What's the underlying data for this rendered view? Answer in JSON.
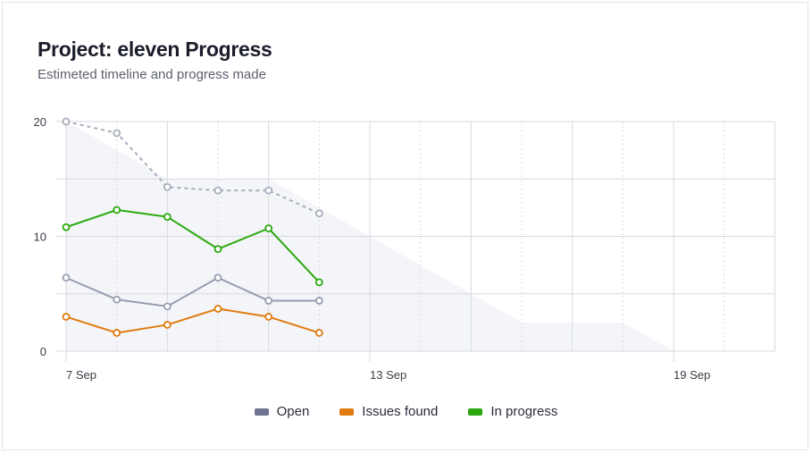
{
  "header": {
    "title": "Project: eleven Progress",
    "subtitle": "Estimeted timeline and progress made"
  },
  "chart_data": {
    "type": "line",
    "x_axis": {
      "range": [
        "7 Sep",
        "21 Sep"
      ],
      "tick_labels": [
        "7 Sep",
        "13 Sep",
        "19 Sep"
      ]
    },
    "y_axis": {
      "range": [
        0,
        20
      ],
      "tick_labels": [
        "0",
        "10",
        "20"
      ]
    },
    "grid": true,
    "legend_placement": "bottom",
    "x": [
      "7 Sep",
      "8 Sep",
      "9 Sep",
      "10 Sep",
      "11 Sep",
      "12 Sep"
    ],
    "series": [
      {
        "name": "Open",
        "color": "#9a9cb0",
        "swatch": "#6f7390",
        "values": [
          6.4,
          4.5,
          3.9,
          6.4,
          4.4,
          4.4
        ]
      },
      {
        "name": "Issues found",
        "color": "#e07b10",
        "swatch": "#e07b10",
        "values": [
          3,
          1.6,
          2.3,
          3.7,
          3,
          1.6
        ]
      },
      {
        "name": "In progress",
        "color": "#2ba80e",
        "swatch": "#2ba80e",
        "values": [
          10.8,
          12.3,
          11.7,
          8.9,
          10.7,
          6
        ]
      },
      {
        "color": "#a9acbc",
        "style": "dotted",
        "values": [
          20,
          19,
          14.3,
          14,
          14,
          12
        ]
      }
    ],
    "estimate_area": {
      "color": "#f3f5f9",
      "points": [
        [
          "7 Sep",
          20
        ],
        [
          "9 Sep",
          15
        ],
        [
          "11 Sep",
          15
        ],
        [
          "16 Sep",
          2.5
        ],
        [
          "18 Sep",
          2.5
        ],
        [
          "19 Sep",
          0
        ]
      ]
    }
  }
}
